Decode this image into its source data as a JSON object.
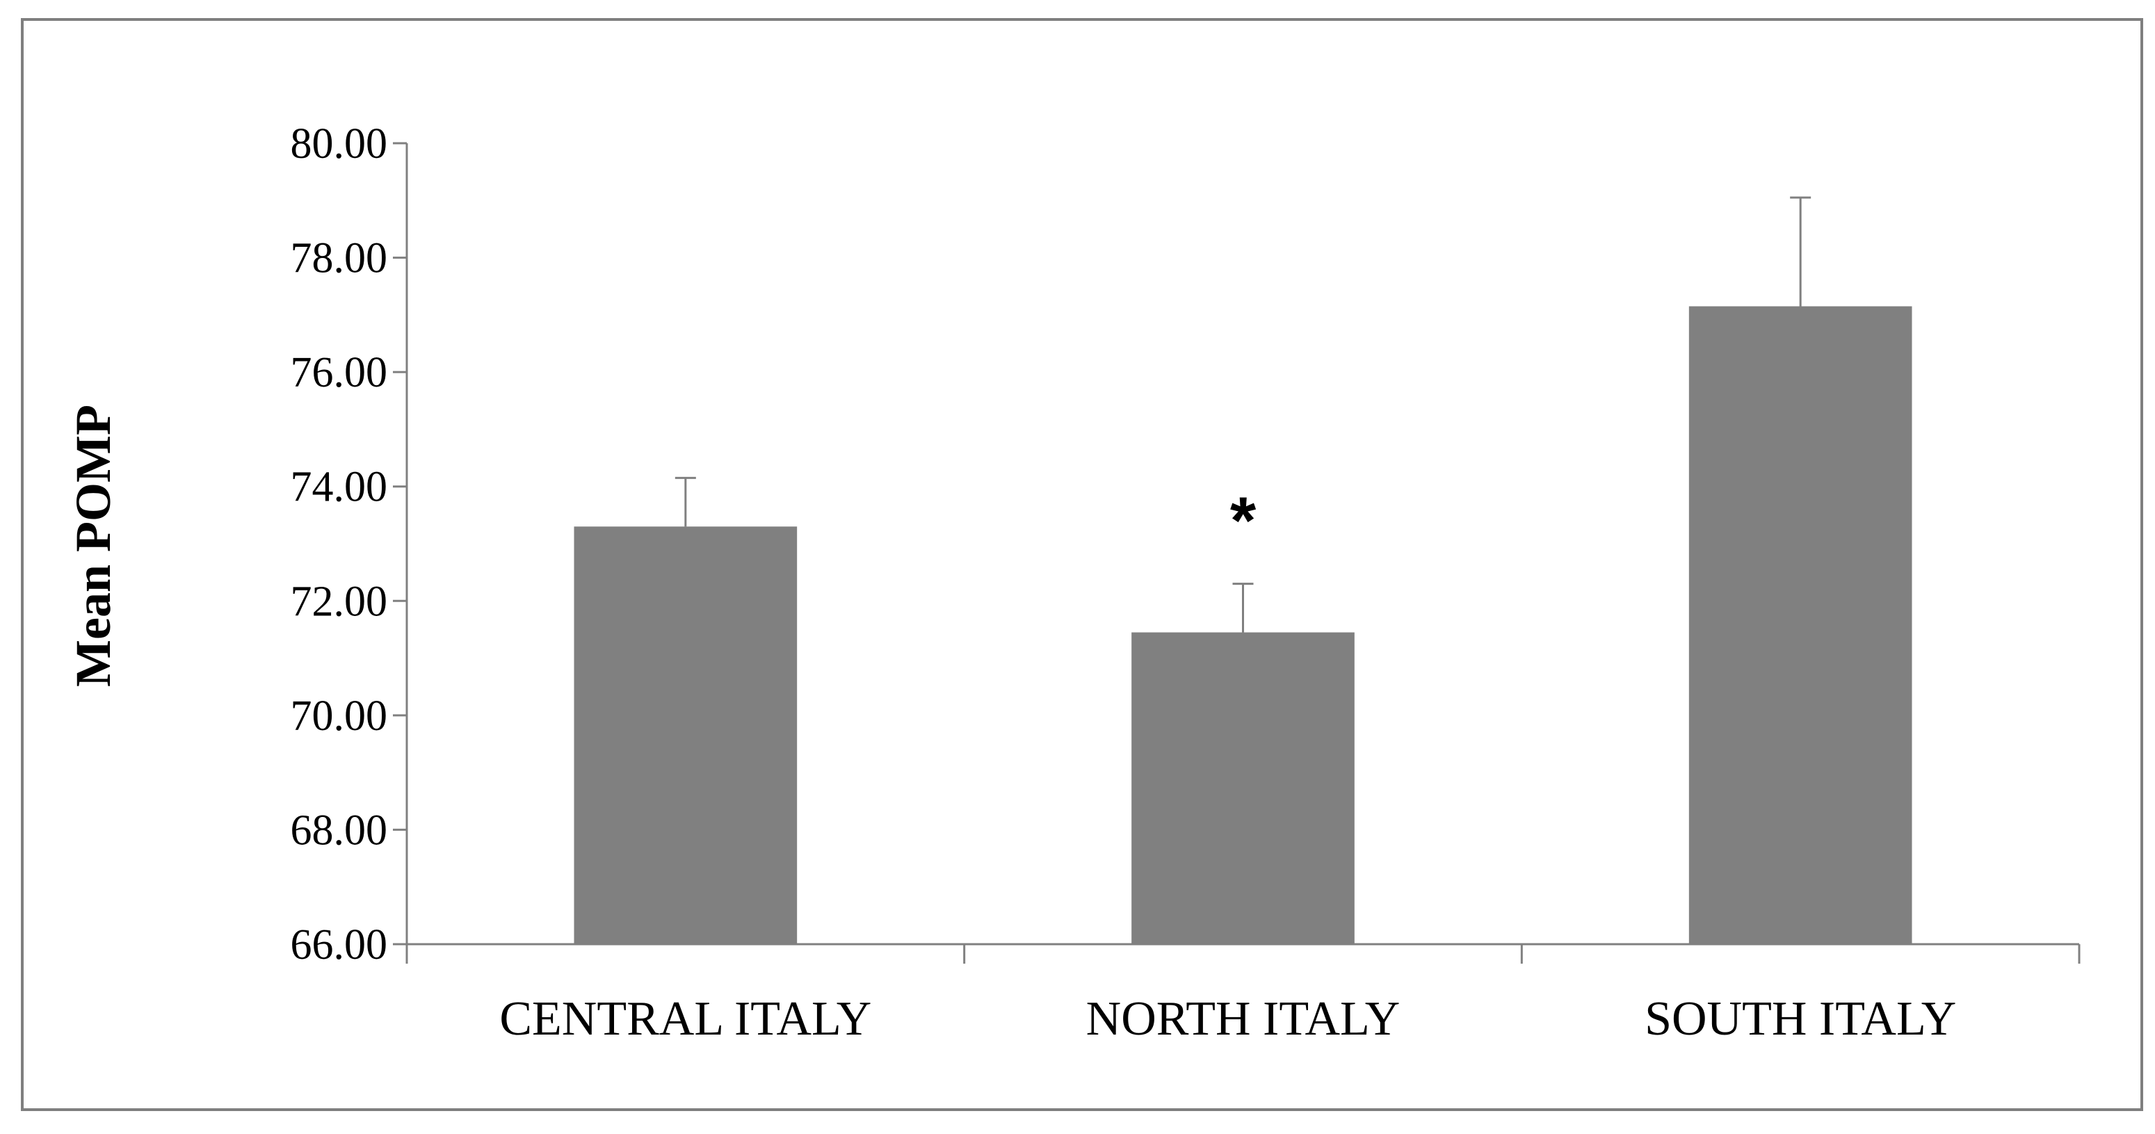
{
  "chart_data": {
    "type": "bar",
    "categories": [
      "CENTRAL ITALY",
      "NORTH ITALY",
      "SOUTH ITALY"
    ],
    "values": [
      73.3,
      71.45,
      77.15
    ],
    "error_bars": [
      0.85,
      0.85,
      1.9
    ],
    "annotations": [
      {
        "category": "NORTH ITALY",
        "text": "*"
      }
    ],
    "ylabel": "Mean POMP",
    "xlabel": "",
    "ylim": [
      66,
      80
    ],
    "yticks": [
      "66.00",
      "68.00",
      "70.00",
      "72.00",
      "74.00",
      "76.00",
      "78.00",
      "80.00"
    ],
    "ytick_values": [
      66,
      68,
      70,
      72,
      74,
      76,
      78,
      80
    ],
    "grid": false,
    "legend": "none",
    "bar_color": "#808080",
    "error_bar_color": "#808080",
    "axis_color": "#808080",
    "frame_color": "#7f7f7f"
  }
}
